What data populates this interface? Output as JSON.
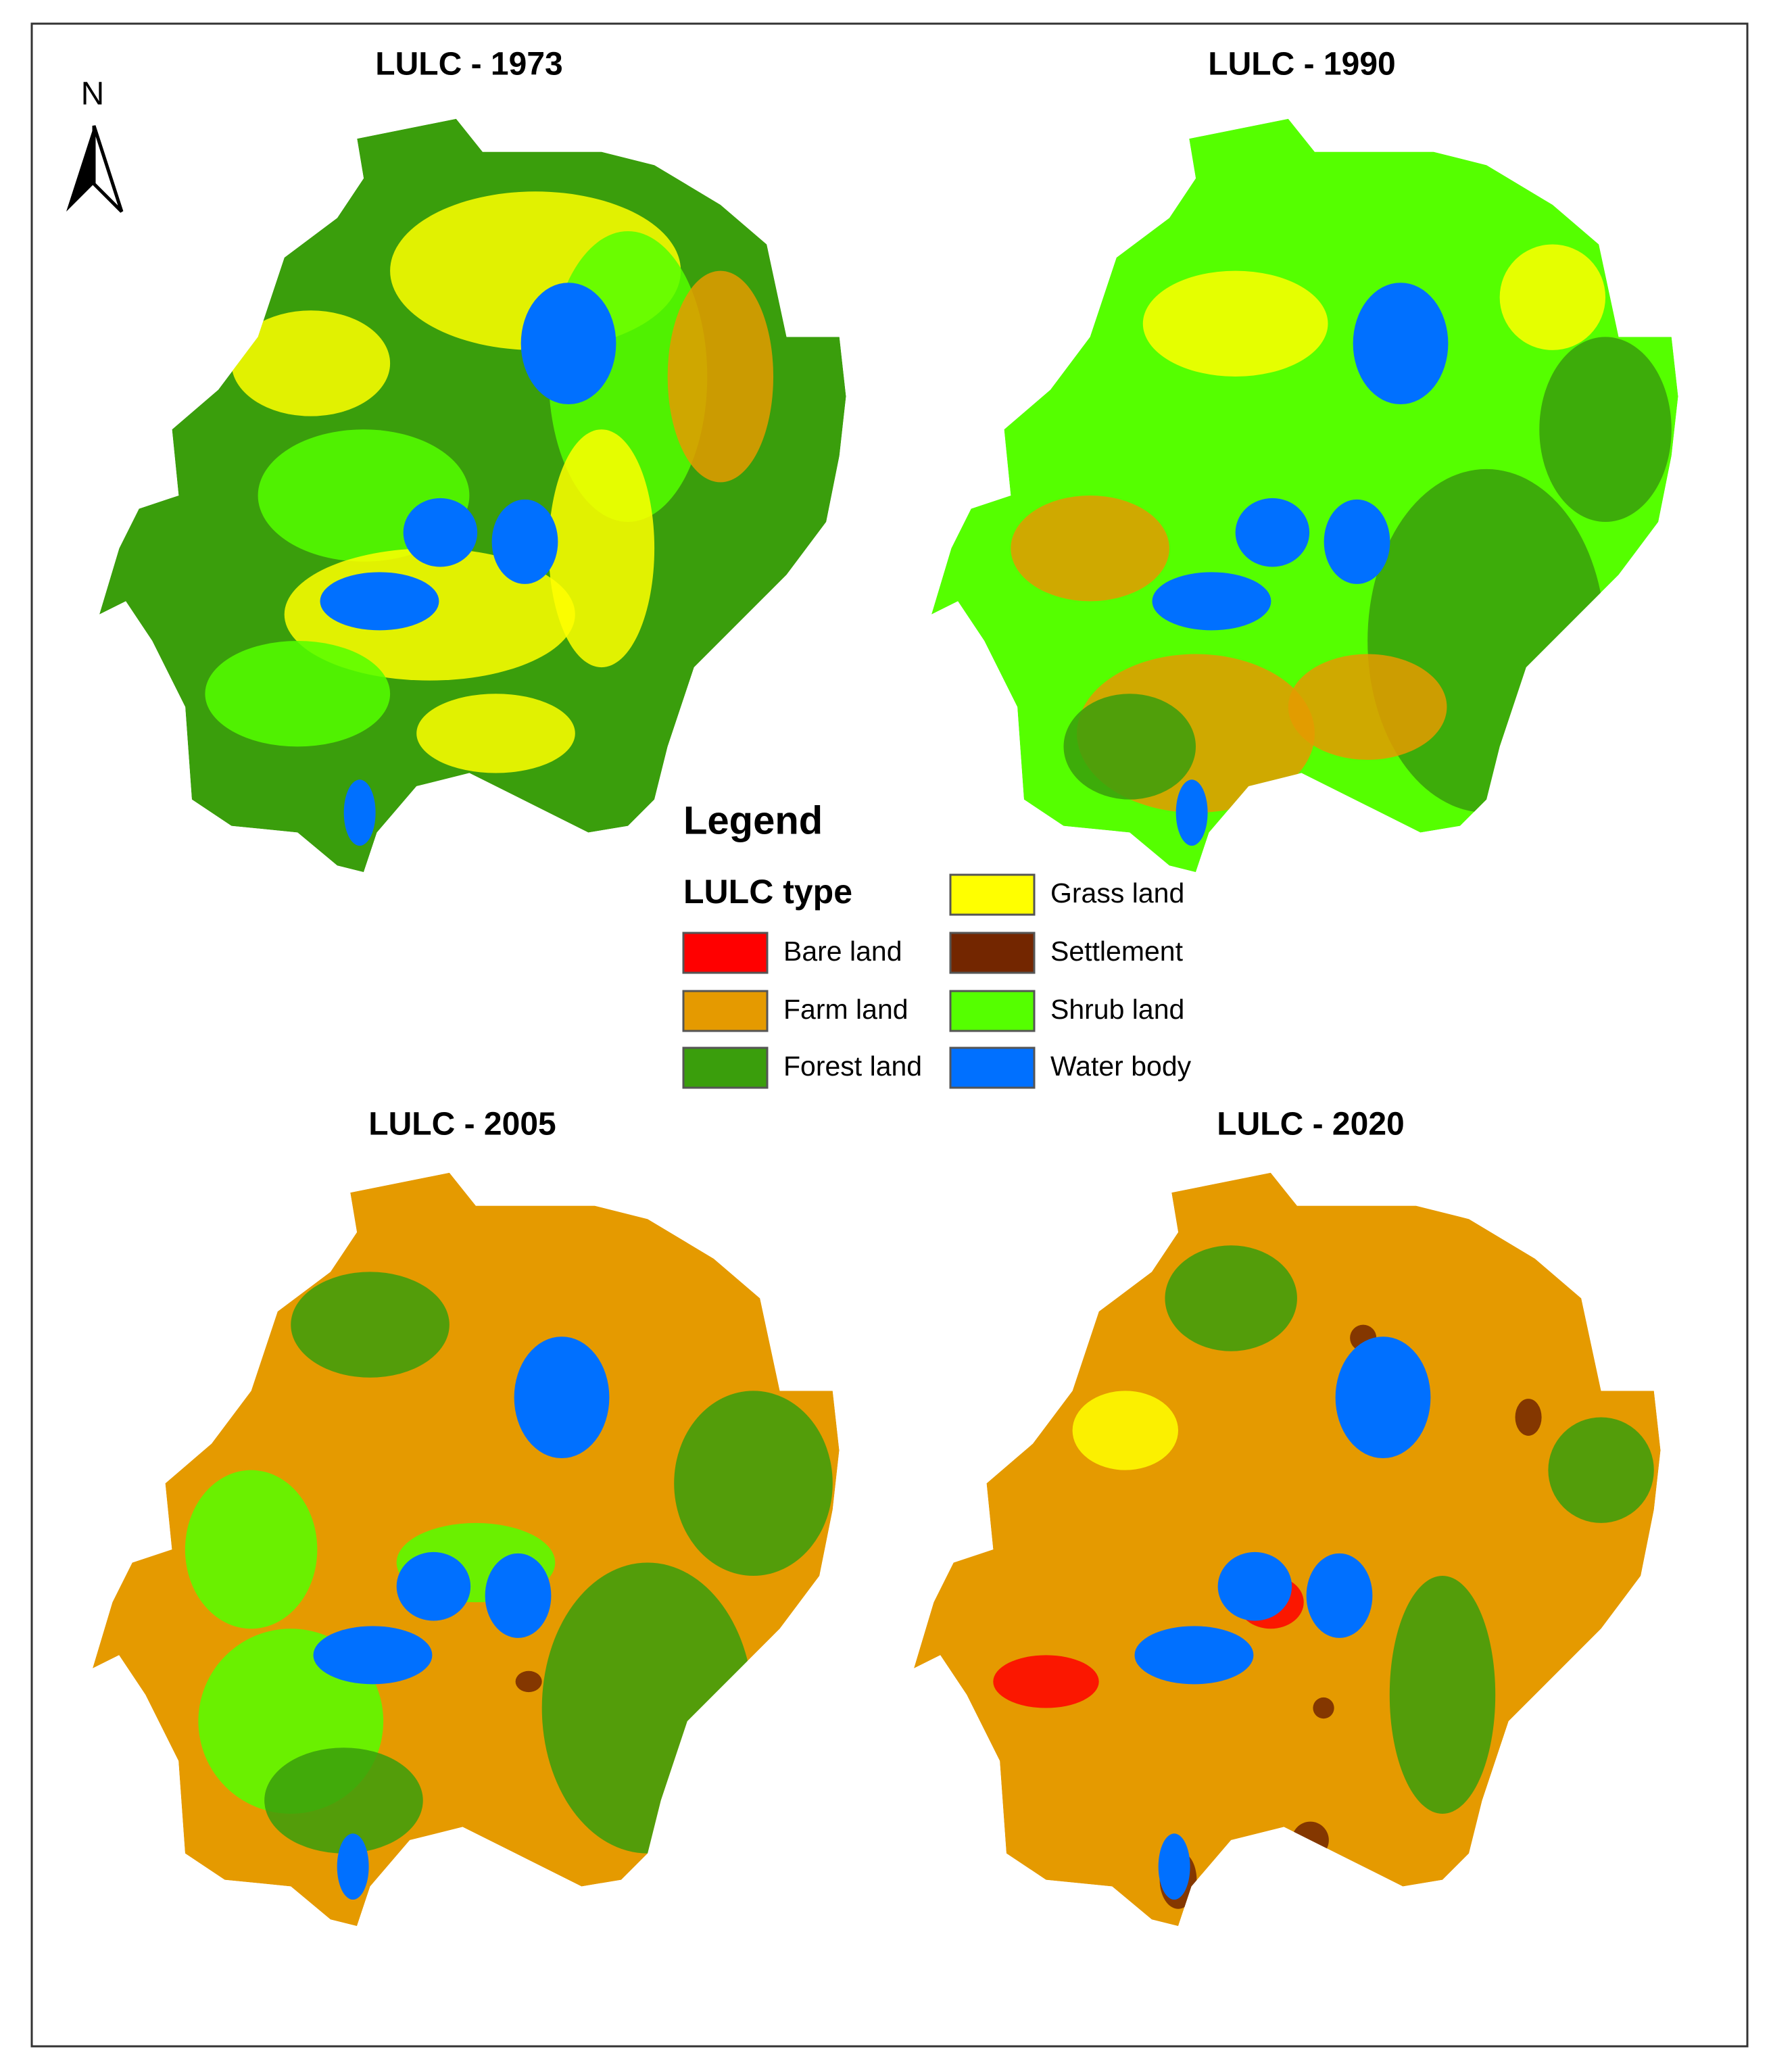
{
  "north_label": "N",
  "maps": [
    {
      "title": "LULC - 1973"
    },
    {
      "title": "LULC - 1990"
    },
    {
      "title": "LULC - 2005"
    },
    {
      "title": "LULC - 2020"
    }
  ],
  "legend": {
    "title": "Legend",
    "subtitle": "LULC type",
    "items": [
      {
        "label": "Bare land",
        "color": "#ff0000"
      },
      {
        "label": "Farm land",
        "color": "#e59a00"
      },
      {
        "label": "Forest land",
        "color": "#3a9e0c"
      },
      {
        "label": "Grass land",
        "color": "#ffff00"
      },
      {
        "label": "Settlement",
        "color": "#732600"
      },
      {
        "label": "Shrub land",
        "color": "#55ff00"
      },
      {
        "label": "Water body",
        "color": "#0070ff"
      }
    ]
  }
}
